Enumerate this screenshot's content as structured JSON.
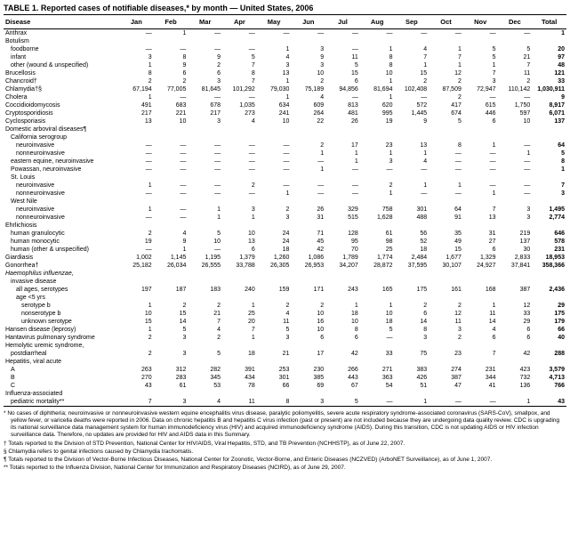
{
  "title": "TABLE 1. Reported cases of notifiable diseases,* by month — United States, 2006",
  "columns": [
    "Disease",
    "Jan",
    "Feb",
    "Mar",
    "Apr",
    "May",
    "Jun",
    "Jul",
    "Aug",
    "Sep",
    "Oct",
    "Nov",
    "Dec",
    "Total"
  ],
  "rows": [
    {
      "label": "Anthrax",
      "indent": 0,
      "v": [
        "—",
        "1",
        "—",
        "—",
        "—",
        "—",
        "—",
        "—",
        "—",
        "—",
        "—",
        "—",
        "1"
      ]
    },
    {
      "label": "Botulism",
      "indent": 0,
      "v": [
        "",
        "",
        "",
        "",
        "",
        "",
        "",
        "",
        "",
        "",
        "",
        "",
        ""
      ]
    },
    {
      "label": "foodborne",
      "indent": 1,
      "v": [
        "—",
        "—",
        "—",
        "—",
        "1",
        "3",
        "—",
        "1",
        "4",
        "1",
        "5",
        "5",
        "20"
      ]
    },
    {
      "label": "infant",
      "indent": 1,
      "v": [
        "3",
        "8",
        "9",
        "5",
        "4",
        "9",
        "11",
        "8",
        "7",
        "7",
        "5",
        "21",
        "97"
      ]
    },
    {
      "label": "other (wound & unspecified)",
      "indent": 1,
      "v": [
        "1",
        "9",
        "2",
        "7",
        "3",
        "3",
        "5",
        "8",
        "1",
        "1",
        "1",
        "7",
        "48"
      ]
    },
    {
      "label": "Brucellosis",
      "indent": 0,
      "v": [
        "8",
        "6",
        "6",
        "8",
        "13",
        "10",
        "15",
        "10",
        "15",
        "12",
        "7",
        "11",
        "121"
      ]
    },
    {
      "label": "Chancroid†",
      "indent": 0,
      "v": [
        "2",
        "2",
        "3",
        "7",
        "1",
        "2",
        "6",
        "1",
        "2",
        "2",
        "3",
        "2",
        "33"
      ]
    },
    {
      "label": "Chlamydia†§",
      "indent": 0,
      "v": [
        "67,194",
        "77,005",
        "81,645",
        "101,292",
        "79,030",
        "75,189",
        "94,856",
        "81,694",
        "102,408",
        "87,509",
        "72,947",
        "110,142",
        "1,030,911"
      ]
    },
    {
      "label": "Cholera",
      "indent": 0,
      "v": [
        "1",
        "—",
        "—",
        "—",
        "1",
        "4",
        "—",
        "1",
        "—",
        "2",
        "—",
        "—",
        "9"
      ]
    },
    {
      "label": "Coccidioidomycosis",
      "indent": 0,
      "v": [
        "491",
        "683",
        "678",
        "1,035",
        "634",
        "609",
        "813",
        "620",
        "572",
        "417",
        "615",
        "1,750",
        "8,917"
      ]
    },
    {
      "label": "Cryptosporidiosis",
      "indent": 0,
      "v": [
        "217",
        "221",
        "217",
        "273",
        "241",
        "264",
        "481",
        "995",
        "1,445",
        "674",
        "446",
        "597",
        "6,071"
      ]
    },
    {
      "label": "Cyclosporiasis",
      "indent": 0,
      "v": [
        "13",
        "10",
        "3",
        "4",
        "10",
        "22",
        "26",
        "19",
        "9",
        "5",
        "6",
        "10",
        "137"
      ]
    },
    {
      "label": "Domestic arboviral diseases¶",
      "indent": 0,
      "v": [
        "",
        "",
        "",
        "",
        "",
        "",
        "",
        "",
        "",
        "",
        "",
        "",
        ""
      ]
    },
    {
      "label": "California serogroup",
      "indent": 1,
      "v": [
        "",
        "",
        "",
        "",
        "",
        "",
        "",
        "",
        "",
        "",
        "",
        "",
        ""
      ]
    },
    {
      "label": "neuroinvasive",
      "indent": 2,
      "v": [
        "—",
        "—",
        "—",
        "—",
        "—",
        "2",
        "17",
        "23",
        "13",
        "8",
        "1",
        "—",
        "64"
      ]
    },
    {
      "label": "nonneuroinvasive",
      "indent": 2,
      "v": [
        "—",
        "—",
        "—",
        "—",
        "—",
        "1",
        "1",
        "1",
        "1",
        "—",
        "—",
        "1",
        "5"
      ]
    },
    {
      "label": "eastern equine, neuroinvasive",
      "indent": 1,
      "v": [
        "—",
        "—",
        "—",
        "—",
        "—",
        "—",
        "1",
        "3",
        "4",
        "—",
        "—",
        "—",
        "8"
      ]
    },
    {
      "label": "Powassan, neuroinvasive",
      "indent": 1,
      "v": [
        "—",
        "—",
        "—",
        "—",
        "—",
        "1",
        "—",
        "—",
        "—",
        "—",
        "—",
        "—",
        "1"
      ]
    },
    {
      "label": "St. Louis",
      "indent": 1,
      "v": [
        "",
        "",
        "",
        "",
        "",
        "",
        "",
        "",
        "",
        "",
        "",
        "",
        ""
      ]
    },
    {
      "label": "neuroinvasive",
      "indent": 2,
      "v": [
        "1",
        "—",
        "—",
        "2",
        "—",
        "—",
        "—",
        "2",
        "1",
        "1",
        "—",
        "—",
        "7"
      ]
    },
    {
      "label": "nonneuroinvasive",
      "indent": 2,
      "v": [
        "—",
        "—",
        "—",
        "—",
        "1",
        "—",
        "—",
        "1",
        "—",
        "—",
        "1",
        "—",
        "3"
      ]
    },
    {
      "label": "West Nile",
      "indent": 1,
      "v": [
        "",
        "",
        "",
        "",
        "",
        "",
        "",
        "",
        "",
        "",
        "",
        "",
        ""
      ]
    },
    {
      "label": "neuroinvasive",
      "indent": 2,
      "v": [
        "1",
        "—",
        "1",
        "3",
        "2",
        "26",
        "329",
        "758",
        "301",
        "64",
        "7",
        "3",
        "1,495"
      ]
    },
    {
      "label": "nonneuroinvasive",
      "indent": 2,
      "v": [
        "—",
        "—",
        "1",
        "1",
        "3",
        "31",
        "515",
        "1,628",
        "488",
        "91",
        "13",
        "3",
        "2,774"
      ]
    },
    {
      "label": "Ehrlichiosis",
      "indent": 0,
      "v": [
        "",
        "",
        "",
        "",
        "",
        "",
        "",
        "",
        "",
        "",
        "",
        "",
        ""
      ]
    },
    {
      "label": "human granulocytic",
      "indent": 1,
      "v": [
        "2",
        "4",
        "5",
        "10",
        "24",
        "71",
        "128",
        "61",
        "56",
        "35",
        "31",
        "219",
        "646"
      ]
    },
    {
      "label": "human monocytic",
      "indent": 1,
      "v": [
        "19",
        "9",
        "10",
        "13",
        "24",
        "45",
        "95",
        "98",
        "52",
        "49",
        "27",
        "137",
        "578"
      ]
    },
    {
      "label": "human (other & unspecified)",
      "indent": 1,
      "v": [
        "—",
        "1",
        "—",
        "6",
        "18",
        "42",
        "70",
        "25",
        "18",
        "15",
        "6",
        "30",
        "231"
      ]
    },
    {
      "label": "Giardiasis",
      "indent": 0,
      "v": [
        "1,002",
        "1,145",
        "1,195",
        "1,379",
        "1,260",
        "1,086",
        "1,789",
        "1,774",
        "2,484",
        "1,677",
        "1,329",
        "2,833",
        "18,953"
      ]
    },
    {
      "label": "Gonorrhea†",
      "indent": 0,
      "v": [
        "25,182",
        "26,034",
        "26,555",
        "33,788",
        "26,305",
        "26,953",
        "34,207",
        "28,872",
        "37,595",
        "30,107",
        "24,927",
        "37,841",
        "358,366"
      ]
    },
    {
      "label": "Haemophilus influenzae,",
      "indent": 0,
      "italic": true,
      "v": [
        "",
        "",
        "",
        "",
        "",
        "",
        "",
        "",
        "",
        "",
        "",
        "",
        ""
      ]
    },
    {
      "label": "invasive disease",
      "indent": 1,
      "v": [
        "",
        "",
        "",
        "",
        "",
        "",
        "",
        "",
        "",
        "",
        "",
        "",
        ""
      ]
    },
    {
      "label": "all ages, serotypes",
      "indent": 2,
      "v": [
        "197",
        "187",
        "183",
        "240",
        "159",
        "171",
        "243",
        "165",
        "175",
        "161",
        "168",
        "387",
        "2,436"
      ]
    },
    {
      "label": "age <5 yrs",
      "indent": 2,
      "v": [
        "",
        "",
        "",
        "",
        "",
        "",
        "",
        "",
        "",
        "",
        "",
        "",
        ""
      ]
    },
    {
      "label": "serotype b",
      "indent": 3,
      "v": [
        "1",
        "2",
        "2",
        "1",
        "2",
        "2",
        "1",
        "1",
        "2",
        "2",
        "1",
        "12",
        "29"
      ]
    },
    {
      "label": "nonserotype b",
      "indent": 3,
      "v": [
        "10",
        "15",
        "21",
        "25",
        "4",
        "10",
        "18",
        "10",
        "6",
        "12",
        "11",
        "33",
        "175"
      ]
    },
    {
      "label": "unknown serotype",
      "indent": 3,
      "v": [
        "15",
        "14",
        "7",
        "20",
        "11",
        "16",
        "10",
        "18",
        "14",
        "11",
        "14",
        "29",
        "179"
      ]
    },
    {
      "label": "Hansen disease (leprosy)",
      "indent": 0,
      "v": [
        "1",
        "5",
        "4",
        "7",
        "5",
        "10",
        "8",
        "5",
        "8",
        "3",
        "4",
        "6",
        "66"
      ]
    },
    {
      "label": "Hantavirus pulmonary syndrome",
      "indent": 0,
      "v": [
        "2",
        "3",
        "2",
        "1",
        "3",
        "6",
        "6",
        "—",
        "3",
        "2",
        "6",
        "6",
        "40"
      ]
    },
    {
      "label": "Hemolytic uremic syndrome,",
      "indent": 0,
      "v": [
        "",
        "",
        "",
        "",
        "",
        "",
        "",
        "",
        "",
        "",
        "",
        "",
        ""
      ]
    },
    {
      "label": "postdiarrheal",
      "indent": 1,
      "v": [
        "2",
        "3",
        "5",
        "18",
        "21",
        "17",
        "42",
        "33",
        "75",
        "23",
        "7",
        "42",
        "288"
      ]
    },
    {
      "label": "Hepatitis, viral acute",
      "indent": 0,
      "v": [
        "",
        "",
        "",
        "",
        "",
        "",
        "",
        "",
        "",
        "",
        "",
        "",
        ""
      ]
    },
    {
      "label": "A",
      "indent": 1,
      "v": [
        "263",
        "312",
        "282",
        "391",
        "253",
        "230",
        "266",
        "271",
        "383",
        "274",
        "231",
        "423",
        "3,579"
      ]
    },
    {
      "label": "B",
      "indent": 1,
      "v": [
        "270",
        "283",
        "345",
        "434",
        "301",
        "385",
        "443",
        "363",
        "426",
        "387",
        "344",
        "732",
        "4,713"
      ]
    },
    {
      "label": "C",
      "indent": 1,
      "v": [
        "43",
        "61",
        "53",
        "78",
        "66",
        "69",
        "67",
        "54",
        "51",
        "47",
        "41",
        "136",
        "766"
      ]
    },
    {
      "label": "Influenza-associated",
      "indent": 0,
      "v": [
        "",
        "",
        "",
        "",
        "",
        "",
        "",
        "",
        "",
        "",
        "",
        "",
        ""
      ]
    },
    {
      "label": "pediatric mortality**",
      "indent": 1,
      "v": [
        "7",
        "3",
        "4",
        "11",
        "8",
        "3",
        "5",
        "—",
        "1",
        "—",
        "—",
        "1",
        "43"
      ]
    }
  ],
  "footnotes": [
    "* No cases of diphtheria; neuroinvasive or nonneuroinvasive western equine encephalitis virus disease, paralytic poliomyelitis, severe acute respiratory syndrome-associated coronavirus (SARS-CoV), smallpox, and yellow fever, or varicella deaths were reported in 2006. Data on chronic hepatitis B and hepatitis C virus infection (past or present) are not included because they are undergoing data quality review. CDC is upgrading its national surveillance data management system for human immunodeficiency virus (HIV) and acquired immunodeficiency syndrome (AIDS). During this transition, CDC is not updating AIDS or HIV infection surveillance data. Therefore, no updates are provided for HIV and AIDS data in this Summary.",
    "† Totals reported to the Division of STD Prevention, National Center for HIV/AIDS, Viral Hepatitis, STD, and TB Prevention (NCHHSTP), as of June 22, 2007.",
    "§ Chlamydia refers to genital infections caused by Chlamydia trachomatis.",
    "¶ Totals reported to the Division of Vector-Borne Infectious Diseases, National Center for Zoonotic, Vector-Borne, and Enteric Diseases (NCZVED) (ArboNET Surveillance), as of June 1, 2007.",
    "** Totals reported to the Influenza Division, National Center for Immunization and Respiratory Diseases (NCIRD), as of June 29, 2007."
  ]
}
